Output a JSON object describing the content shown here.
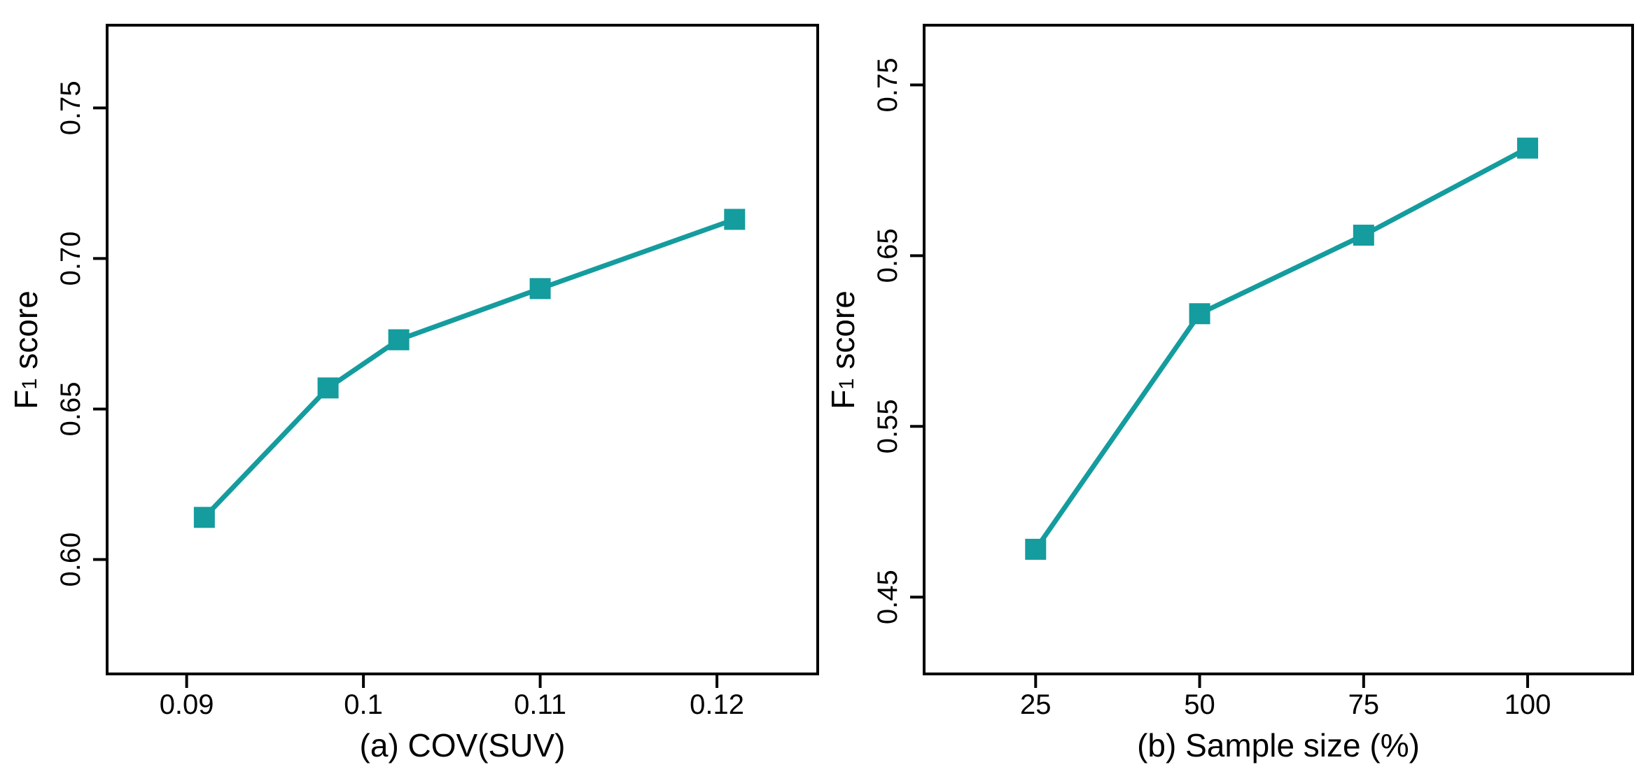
{
  "figure": {
    "background": "#ffffff",
    "accent_color": "#149C9E",
    "axis_color": "#000000"
  },
  "chart_data": [
    {
      "type": "line",
      "panel": "a",
      "xlabel": "(a) COV(SUV)",
      "ylabel": "F1 score",
      "ylabel_parts": {
        "base": "F",
        "sub": "1",
        "rest": " score"
      },
      "x": [
        0.091,
        0.098,
        0.102,
        0.11,
        0.121
      ],
      "y": [
        0.614,
        0.657,
        0.673,
        0.69,
        0.713
      ],
      "xtick_values": [
        0.09,
        0.1,
        0.11,
        0.12
      ],
      "xtick_labels": [
        "0.09",
        "0.1",
        "0.11",
        "0.12"
      ],
      "ytick_values": [
        0.6,
        0.65,
        0.7,
        0.75
      ],
      "ytick_labels": [
        "0.60",
        "0.65",
        "0.70",
        "0.75"
      ],
      "xlim": [
        0.0855,
        0.1257
      ],
      "ylim": [
        0.562,
        0.7775
      ],
      "marker": "square",
      "grid": false,
      "legend": "none",
      "line_color": "#149C9E"
    },
    {
      "type": "line",
      "panel": "b",
      "xlabel": "(b) Sample size (%)",
      "ylabel": "F1 score",
      "ylabel_parts": {
        "base": "F",
        "sub": "1",
        "rest": " score"
      },
      "x": [
        25,
        50,
        75,
        100
      ],
      "y": [
        0.478,
        0.616,
        0.662,
        0.713
      ],
      "xtick_values": [
        25,
        50,
        75,
        100
      ],
      "xtick_labels": [
        "25",
        "50",
        "75",
        "100"
      ],
      "ytick_values": [
        0.45,
        0.55,
        0.65,
        0.75
      ],
      "ytick_labels": [
        "0.45",
        "0.55",
        "0.65",
        "0.75"
      ],
      "xlim": [
        8,
        116
      ],
      "ylim": [
        0.405,
        0.785
      ],
      "marker": "square",
      "grid": false,
      "legend": "none",
      "line_color": "#149C9E"
    }
  ]
}
